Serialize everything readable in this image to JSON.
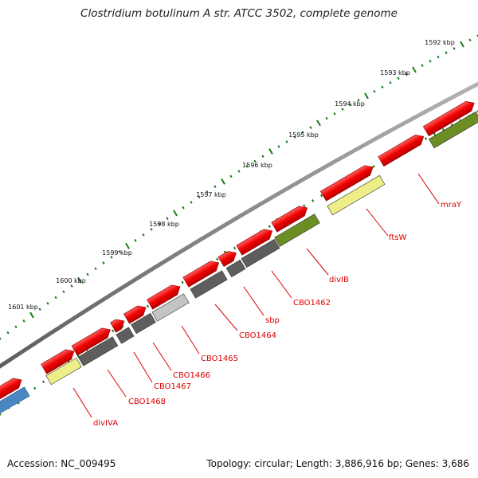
{
  "title": "Clostridium botulinum A str. ATCC 3502, complete genome",
  "ticks": [
    {
      "label": "1592 kbp"
    },
    {
      "label": "1593 kbp"
    },
    {
      "label": "1594 kbp"
    },
    {
      "label": "1595 kbp"
    },
    {
      "label": "1596 kbp"
    },
    {
      "label": "1597 kbp"
    },
    {
      "label": "1598 kbp"
    },
    {
      "label": "1599 kbp"
    },
    {
      "label": "1600 kbp"
    },
    {
      "label": "1601 kbp"
    }
  ],
  "genes": [
    {
      "name": "mraY",
      "type": "functional-green"
    },
    {
      "name": "ftsW",
      "type": "functional-yellow"
    },
    {
      "name": "divIB",
      "type": "functional-green"
    },
    {
      "name": "CBO1462",
      "type": "dark-gray"
    },
    {
      "name": "sbp",
      "type": "dark-gray"
    },
    {
      "name": "CBO1464",
      "type": "dark-gray"
    },
    {
      "name": "CBO1465",
      "type": "light-gray"
    },
    {
      "name": "CBO1466",
      "type": "dark-gray"
    },
    {
      "name": "CBO1467",
      "type": "dark-gray"
    },
    {
      "name": "CBO1468",
      "type": "dark-gray"
    },
    {
      "name": "divIVA",
      "type": "functional-yellow"
    }
  ],
  "colors": {
    "backbone": "#7a7a7a",
    "cds": "#ee0000",
    "functional-green": "#6b8e23",
    "functional-yellow": "#eeee88",
    "dark-gray": "#5e5e5e",
    "light-gray": "#c4c4c4",
    "blue": "#4a86c0",
    "tick": "#1a7a1a",
    "label": "#dd0000"
  },
  "footer": {
    "accession": "Accession: NC_009495",
    "summary": "Topology: circular; Length: 3,886,916 bp; Genes: 3,686"
  }
}
